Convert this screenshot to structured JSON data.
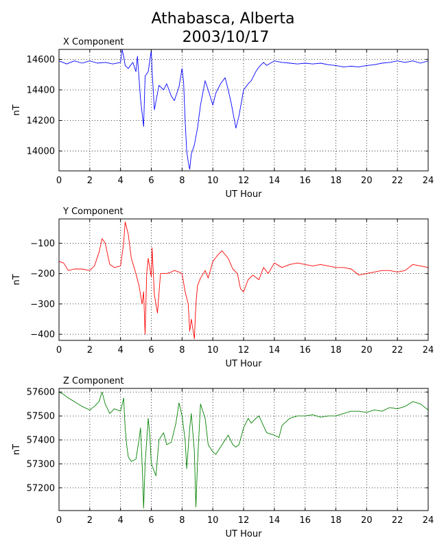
{
  "figure": {
    "title_line1": "Athabasca, Alberta",
    "title_line2": "2003/10/17"
  },
  "chart_data": [
    {
      "type": "line",
      "title": "X Component",
      "xlabel": "UT Hour",
      "ylabel": "nT",
      "xlim": [
        0,
        24
      ],
      "ylim": [
        13870,
        14665
      ],
      "xticks": [
        0,
        2,
        4,
        6,
        8,
        10,
        12,
        14,
        16,
        18,
        20,
        22,
        24
      ],
      "yticks": [
        14000,
        14200,
        14400,
        14600
      ],
      "grid": true,
      "color": "#0000ff",
      "series": [
        {
          "x": [
            0,
            0.5,
            1,
            1.5,
            2,
            2.5,
            3,
            3.5,
            4,
            4.1,
            4.2,
            4.3,
            4.5,
            4.8,
            5,
            5.1,
            5.3,
            5.5,
            5.6,
            5.8,
            6,
            6.05,
            6.2,
            6.5,
            6.8,
            7,
            7.3,
            7.5,
            7.8,
            8,
            8.1,
            8.2,
            8.3,
            8.4,
            8.5,
            8.6,
            8.8,
            9,
            9.2,
            9.5,
            9.7,
            10,
            10.2,
            10.5,
            10.8,
            11,
            11.2,
            11.5,
            11.7,
            12,
            12.3,
            12.5,
            12.8,
            13,
            13.3,
            13.5,
            14,
            14.5,
            15,
            15.5,
            16,
            16.5,
            17,
            17.5,
            18,
            18.5,
            19,
            19.5,
            20,
            20.5,
            21,
            21.5,
            22,
            22.5,
            23,
            23.5,
            24
          ],
          "y": [
            14590,
            14570,
            14590,
            14575,
            14590,
            14575,
            14580,
            14570,
            14580,
            14665,
            14620,
            14560,
            14540,
            14580,
            14520,
            14620,
            14340,
            14160,
            14490,
            14520,
            14660,
            14530,
            14270,
            14430,
            14400,
            14440,
            14360,
            14330,
            14420,
            14540,
            14450,
            14200,
            14000,
            13930,
            13880,
            13980,
            14040,
            14150,
            14300,
            14460,
            14400,
            14300,
            14380,
            14440,
            14480,
            14400,
            14310,
            14150,
            14230,
            14400,
            14440,
            14460,
            14520,
            14550,
            14580,
            14560,
            14590,
            14580,
            14575,
            14570,
            14575,
            14570,
            14575,
            14565,
            14560,
            14550,
            14555,
            14550,
            14560,
            14565,
            14575,
            14580,
            14590,
            14580,
            14590,
            14575,
            14590
          ]
        }
      ]
    },
    {
      "type": "line",
      "title": "Y Component",
      "xlabel": "UT Hour",
      "ylabel": "nT",
      "xlim": [
        0,
        24
      ],
      "ylim": [
        -420,
        -20
      ],
      "xticks": [
        0,
        2,
        4,
        6,
        8,
        10,
        12,
        14,
        16,
        18,
        20,
        22,
        24
      ],
      "yticks": [
        -100,
        -200,
        -300,
        -400
      ],
      "grid": true,
      "color": "#ff0000",
      "series": [
        {
          "x": [
            0,
            0.3,
            0.6,
            1,
            1.5,
            2,
            2.3,
            2.6,
            2.8,
            3,
            3.3,
            3.6,
            4,
            4.2,
            4.3,
            4.5,
            4.7,
            5,
            5.2,
            5.4,
            5.5,
            5.6,
            5.7,
            5.8,
            6,
            6.05,
            6.2,
            6.4,
            6.6,
            7,
            7.3,
            7.5,
            7.8,
            8,
            8.2,
            8.4,
            8.5,
            8.6,
            8.8,
            8.9,
            9,
            9.2,
            9.5,
            9.7,
            10,
            10.3,
            10.6,
            11,
            11.3,
            11.6,
            11.8,
            12,
            12.3,
            12.6,
            13,
            13.3,
            13.6,
            14,
            14.5,
            15,
            15.5,
            16,
            16.5,
            17,
            17.5,
            18,
            18.5,
            19,
            19.5,
            20,
            20.5,
            21,
            21.5,
            22,
            22.5,
            23,
            23.5,
            24
          ],
          "y": [
            -160,
            -165,
            -190,
            -185,
            -185,
            -190,
            -175,
            -130,
            -85,
            -100,
            -170,
            -180,
            -175,
            -100,
            -30,
            -70,
            -150,
            -200,
            -240,
            -300,
            -260,
            -400,
            -200,
            -150,
            -210,
            -115,
            -270,
            -330,
            -200,
            -200,
            -195,
            -190,
            -195,
            -200,
            -260,
            -300,
            -390,
            -350,
            -415,
            -300,
            -240,
            -215,
            -190,
            -215,
            -160,
            -140,
            -125,
            -150,
            -185,
            -200,
            -250,
            -260,
            -220,
            -205,
            -220,
            -180,
            -200,
            -165,
            -180,
            -170,
            -165,
            -170,
            -175,
            -170,
            -175,
            -180,
            -180,
            -185,
            -205,
            -200,
            -195,
            -190,
            -190,
            -195,
            -190,
            -170,
            -175,
            -180
          ]
        }
      ]
    },
    {
      "type": "line",
      "title": "Z Component",
      "xlabel": "UT Hour",
      "ylabel": "nT",
      "xlim": [
        0,
        24
      ],
      "ylim": [
        57105,
        57615
      ],
      "xticks": [
        0,
        2,
        4,
        6,
        8,
        10,
        12,
        14,
        16,
        18,
        20,
        22,
        24
      ],
      "yticks": [
        57200,
        57300,
        57400,
        57500,
        57600
      ],
      "grid": true,
      "color": "#008000",
      "series": [
        {
          "x": [
            0,
            0.3,
            0.6,
            1,
            1.5,
            2,
            2.3,
            2.6,
            2.8,
            3,
            3.3,
            3.6,
            4,
            4.2,
            4.3,
            4.4,
            4.5,
            4.7,
            5,
            5.2,
            5.3,
            5.4,
            5.45,
            5.5,
            5.6,
            5.8,
            5.9,
            6,
            6.3,
            6.5,
            6.8,
            7,
            7.3,
            7.6,
            7.8,
            8,
            8.2,
            8.3,
            8.5,
            8.6,
            8.8,
            8.9,
            9,
            9.2,
            9.5,
            9.7,
            10,
            10.2,
            10.5,
            10.8,
            11,
            11.3,
            11.5,
            11.7,
            12,
            12.3,
            12.5,
            12.8,
            13,
            13.5,
            14,
            14.3,
            14.5,
            15,
            15.5,
            16,
            16.5,
            17,
            17.5,
            18,
            18.5,
            19,
            19.5,
            20,
            20.5,
            21,
            21.5,
            22,
            22.5,
            23,
            23.5,
            24
          ],
          "y": [
            57600,
            57590,
            57575,
            57560,
            57540,
            57525,
            57540,
            57560,
            57600,
            57550,
            57510,
            57530,
            57520,
            57575,
            57450,
            57380,
            57330,
            57310,
            57320,
            57400,
            57450,
            57300,
            57220,
            57115,
            57300,
            57490,
            57420,
            57300,
            57250,
            57400,
            57430,
            57380,
            57390,
            57470,
            57555,
            57500,
            57400,
            57280,
            57450,
            57510,
            57350,
            57120,
            57300,
            57550,
            57490,
            57380,
            57350,
            57340,
            57370,
            57400,
            57420,
            57380,
            57370,
            57380,
            57450,
            57490,
            57470,
            57490,
            57500,
            57430,
            57420,
            57410,
            57460,
            57490,
            57500,
            57500,
            57505,
            57495,
            57500,
            57500,
            57510,
            57520,
            57520,
            57515,
            57525,
            57520,
            57535,
            57530,
            57540,
            57560,
            57550,
            57525
          ]
        }
      ]
    }
  ]
}
